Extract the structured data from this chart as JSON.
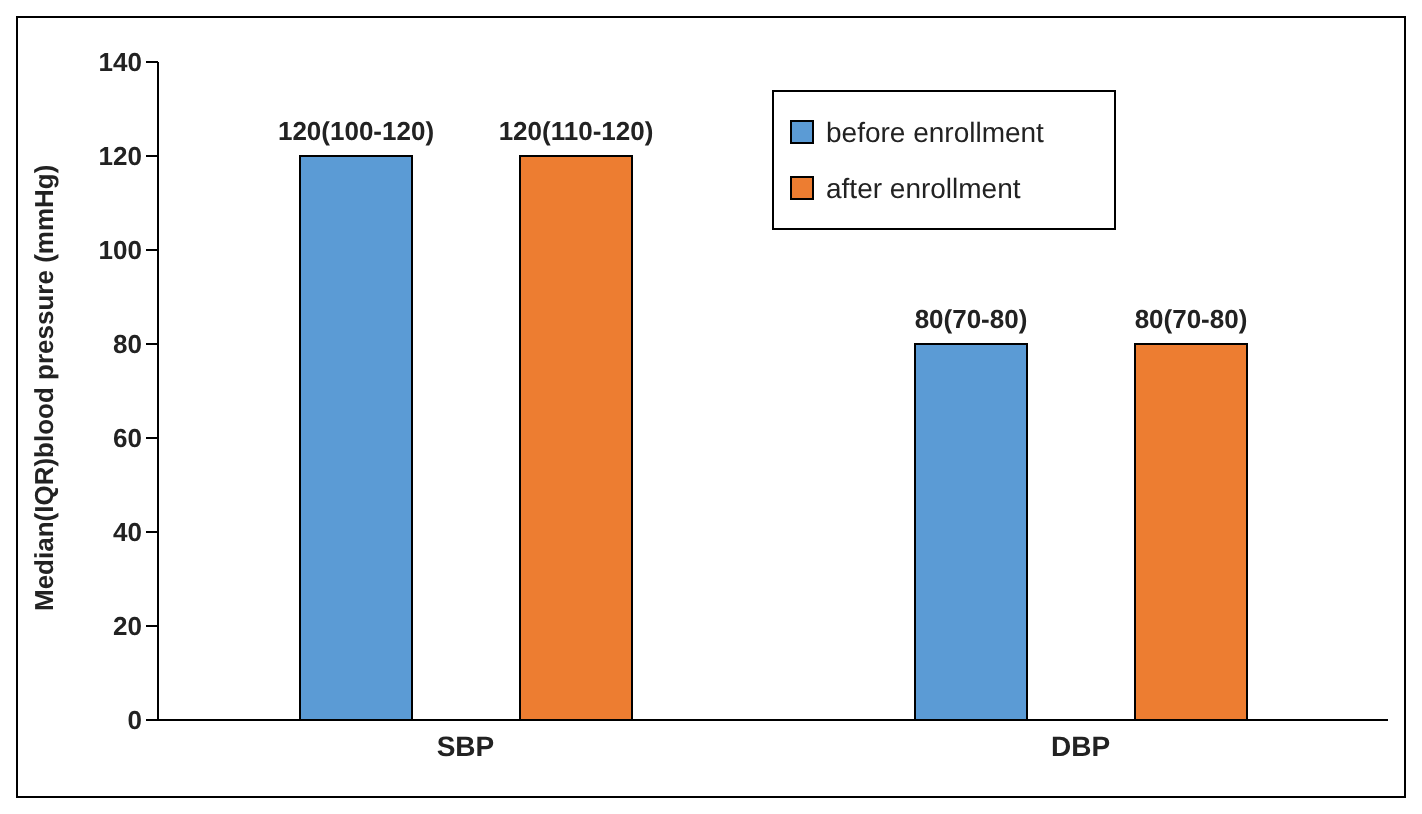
{
  "chart_data": {
    "type": "bar",
    "ylabel": "Median(IQR)blood pressure (mmHg)",
    "categories": [
      "SBP",
      "DBP"
    ],
    "series": [
      {
        "name": "before enrollment",
        "color": "#5b9bd5",
        "values": [
          120,
          80
        ],
        "value_labels": [
          "120(100-120)",
          "80(70-80)"
        ]
      },
      {
        "name": "after enrollment",
        "color": "#ed7d31",
        "values": [
          120,
          80
        ],
        "value_labels": [
          "120(110-120)",
          "80(70-80)"
        ]
      }
    ],
    "ylim": [
      0,
      140
    ],
    "yticks": [
      0,
      20,
      40,
      60,
      80,
      100,
      120,
      140
    ],
    "grid": false,
    "legend": "top right"
  }
}
